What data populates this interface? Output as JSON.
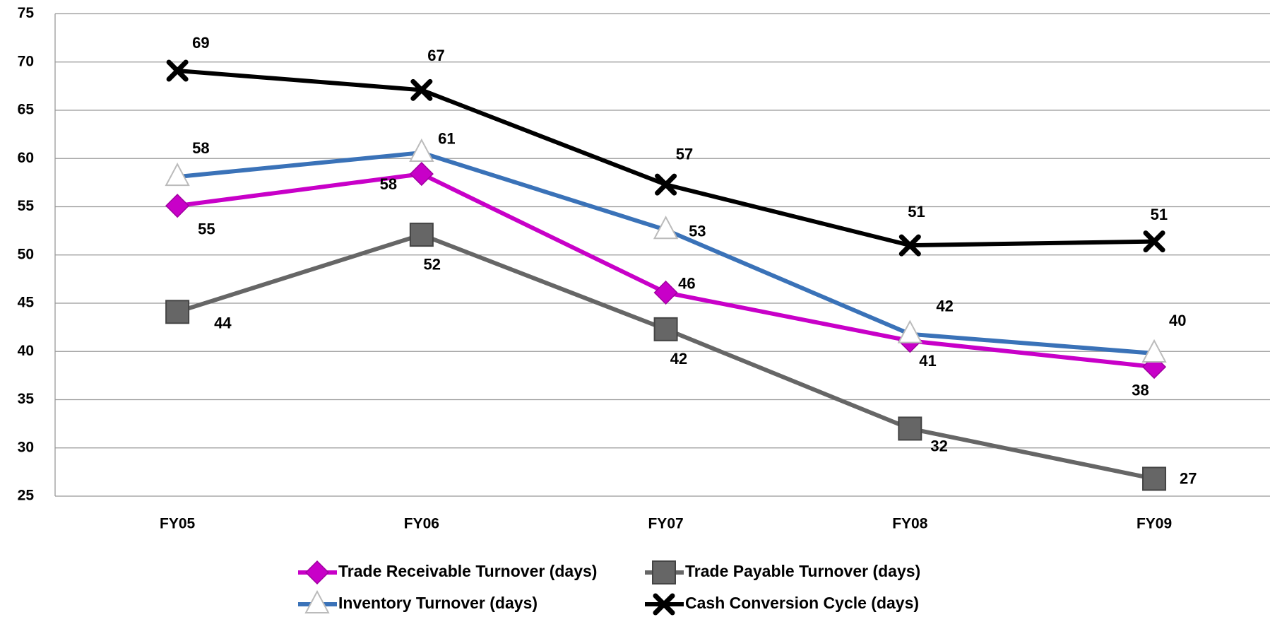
{
  "chart_data": {
    "type": "line",
    "categories": [
      "FY05",
      "FY06",
      "FY07",
      "FY08",
      "FY09"
    ],
    "series": [
      {
        "name": "Trade Receivable Turnover (days)",
        "color": "#c800c8",
        "marker": "diamond",
        "values": [
          55.1,
          58.4,
          46.1,
          41.1,
          38.4
        ],
        "value_labels": [
          "55",
          "58",
          "46",
          "41",
          "38"
        ]
      },
      {
        "name": "Trade Payable Turnover (days)",
        "color": "#666666",
        "marker": "square",
        "values": [
          44.1,
          52.1,
          42.3,
          32.0,
          26.8
        ],
        "value_labels": [
          "44",
          "52",
          "42",
          "32",
          "27"
        ]
      },
      {
        "name": "Inventory Turnover (days)",
        "color": "#3a72b8",
        "marker": "triangle",
        "values": [
          58.1,
          60.6,
          52.6,
          41.8,
          39.8
        ],
        "value_labels": [
          "58",
          "61",
          "53",
          "42",
          "40"
        ]
      },
      {
        "name": "Cash Conversion Cycle (days)",
        "color": "#000000",
        "marker": "x",
        "values": [
          69.1,
          67.1,
          57.3,
          51.0,
          51.4
        ],
        "value_labels": [
          "69",
          "67",
          "57",
          "51",
          "51"
        ]
      }
    ],
    "ylim": [
      25,
      75
    ],
    "yticks": [
      25,
      30,
      35,
      40,
      45,
      50,
      55,
      60,
      65,
      70,
      75
    ],
    "grid": true,
    "legend": "bottom"
  }
}
